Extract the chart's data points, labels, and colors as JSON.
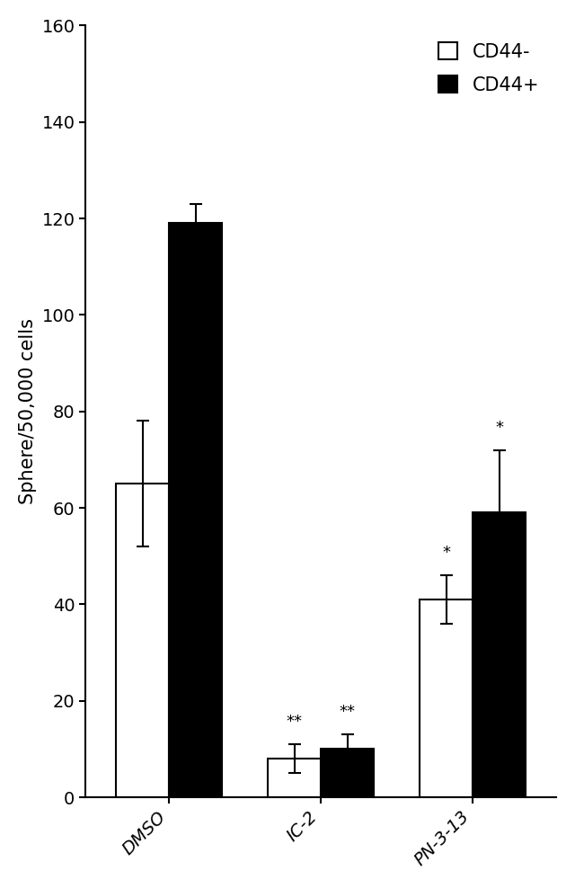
{
  "categories": [
    "DMSO",
    "IC-2",
    "PN-3-13"
  ],
  "cd44_minus_values": [
    65,
    8,
    41
  ],
  "cd44_plus_values": [
    119,
    10,
    59
  ],
  "cd44_minus_errors": [
    13,
    3,
    5
  ],
  "cd44_plus_errors": [
    4,
    3,
    13
  ],
  "cd44_minus_color": "#ffffff",
  "cd44_plus_color": "#000000",
  "bar_edge_color": "#000000",
  "ylabel": "Sphere/50,000 cells",
  "ylim": [
    0,
    160
  ],
  "yticks": [
    0,
    20,
    40,
    60,
    80,
    100,
    120,
    140,
    160
  ],
  "legend_labels": [
    "CD44-",
    "CD44+"
  ],
  "bar_width": 0.35,
  "annotations": {
    "IC-2_minus": "**",
    "IC-2_plus": "**",
    "PN-3-13_minus": "*",
    "PN-3-13_plus": "*"
  },
  "annotation_fontsize": 13,
  "tick_fontsize": 14,
  "label_fontsize": 15,
  "legend_fontsize": 15,
  "background_color": "#ffffff",
  "figure_background": "#ffffff"
}
